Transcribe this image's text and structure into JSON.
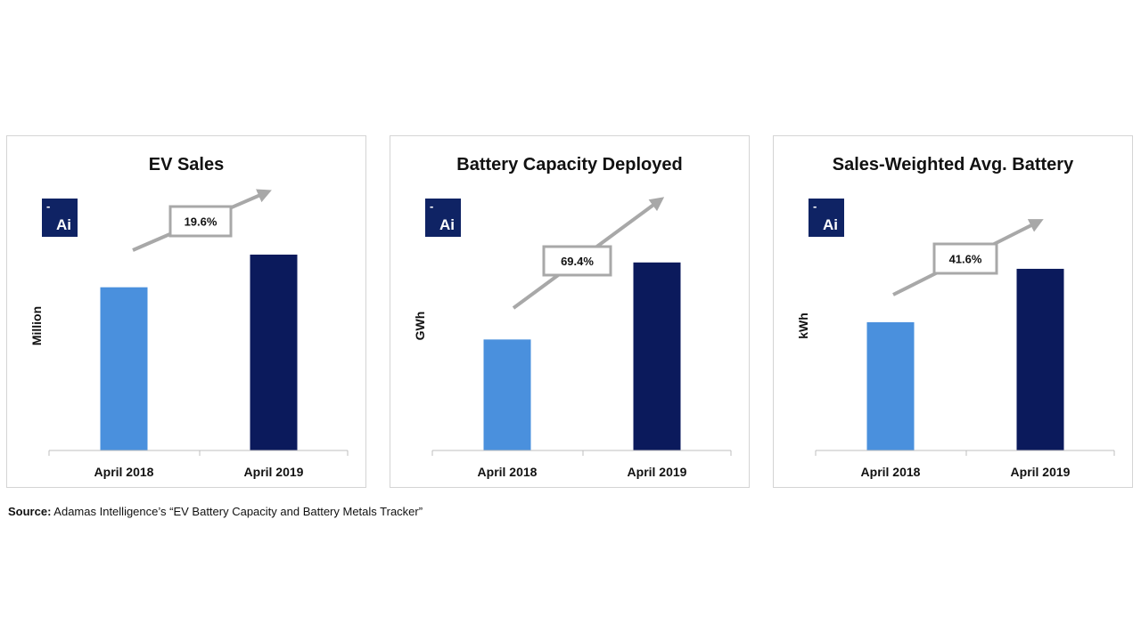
{
  "colors": {
    "bar_2018": "#4a90dd",
    "bar_2019": "#0b1a5c",
    "arrow": "#a8a8a8",
    "logo_bg": "#0f2364",
    "axis": "#bfbfbf"
  },
  "logo": {
    "dash": "-",
    "text": "Ai"
  },
  "chart_data": [
    {
      "type": "bar",
      "title": "EV Sales",
      "ylabel": "Million",
      "categories": [
        "April 2018",
        "April 2019"
      ],
      "values": [
        0.8,
        0.96
      ],
      "ylim": [
        0,
        1.2
      ],
      "growth_label": "19.6%",
      "grid": false
    },
    {
      "type": "bar",
      "title": "Battery Capacity Deployed",
      "ylabel": "GWh",
      "categories": [
        "April 2018",
        "April 2019"
      ],
      "values": [
        3.4,
        5.76
      ],
      "ylim": [
        0,
        7.5
      ],
      "growth_label": "69.4%",
      "grid": false
    },
    {
      "type": "bar",
      "title": "Sales-Weighted Avg. Battery",
      "ylabel": "kWh",
      "categories": [
        "April 2018",
        "April 2019"
      ],
      "values": [
        26.2,
        37.1
      ],
      "ylim": [
        0,
        50
      ],
      "growth_label": "41.6%",
      "grid": false
    }
  ],
  "source": {
    "label": "Source:",
    "text": " Adamas Intelligence’s “EV Battery Capacity and Battery Metals Tracker”"
  }
}
